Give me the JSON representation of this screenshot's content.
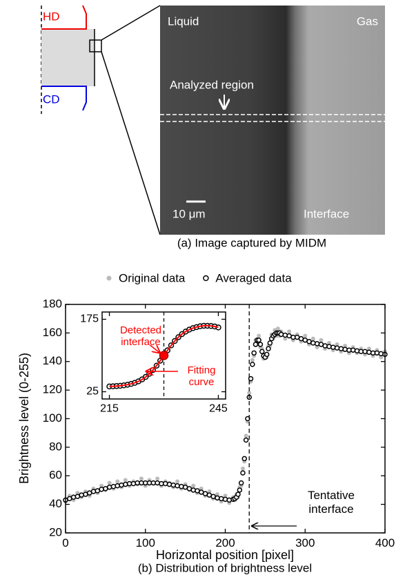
{
  "image_panel": {
    "labels": {
      "hd": "HD",
      "cd": "CD",
      "liquid": "Liquid",
      "gas": "Gas",
      "analyzed_region": "Analyzed region",
      "scale_bar": "10 μm",
      "interface": "Interface"
    },
    "caption": "(a) Image captured by MIDM"
  },
  "chart_data": [
    {
      "type": "scatter",
      "caption": "(b) Distribution of brightness level",
      "x_label": "Horizontal position [pixel]",
      "y_label": "Brightness level (0-255)",
      "xlim": [
        0,
        400
      ],
      "xticks": [
        0,
        100,
        200,
        300,
        400
      ],
      "ylim": [
        20,
        180
      ],
      "yticks": [
        20,
        40,
        60,
        80,
        100,
        120,
        140,
        160,
        180
      ],
      "legend": "top",
      "interface_x": 230,
      "annotation": "Tentative interface",
      "x": [
        0,
        5,
        10,
        15,
        20,
        25,
        30,
        35,
        40,
        45,
        50,
        55,
        60,
        65,
        70,
        75,
        80,
        85,
        90,
        95,
        100,
        105,
        110,
        115,
        120,
        125,
        130,
        135,
        140,
        145,
        150,
        155,
        160,
        165,
        170,
        175,
        180,
        185,
        190,
        195,
        200,
        205,
        210,
        212,
        214,
        216,
        218,
        220,
        222,
        224,
        226,
        228,
        230,
        232,
        234,
        236,
        238,
        240,
        242,
        244,
        246,
        248,
        250,
        252,
        254,
        256,
        258,
        260,
        262,
        264,
        266,
        268,
        270,
        275,
        280,
        285,
        290,
        295,
        300,
        305,
        310,
        315,
        320,
        325,
        330,
        335,
        340,
        345,
        350,
        355,
        360,
        365,
        370,
        375,
        380,
        385,
        390,
        395,
        400
      ],
      "series": [
        {
          "name": "Original data",
          "color": "#bbbbbb",
          "marker": "filled",
          "values": [
            42,
            46,
            43,
            48,
            45,
            49,
            46,
            51,
            48,
            53,
            50,
            55,
            51,
            56,
            52,
            57,
            53,
            56,
            54,
            58,
            53,
            57,
            55,
            58,
            53,
            56,
            55,
            52,
            56,
            51,
            54,
            50,
            53,
            48,
            51,
            46,
            49,
            44,
            47,
            42,
            46,
            41,
            45,
            43,
            47,
            45,
            52,
            53,
            65,
            70,
            88,
            98,
            118,
            126,
            141,
            144,
            155,
            153,
            158,
            150,
            149,
            142,
            145,
            143,
            151,
            151,
            159,
            156,
            162,
            158,
            163,
            158,
            161,
            156,
            161,
            155,
            159,
            154,
            158,
            152,
            156,
            150,
            155,
            149,
            153,
            148,
            152,
            147,
            151,
            146,
            150,
            146,
            149,
            145,
            149,
            144,
            148,
            143,
            147
          ]
        },
        {
          "name": "Averaged data",
          "color": "#000000",
          "marker": "open",
          "values": [
            43,
            44,
            45,
            45.5,
            46.5,
            47,
            48,
            49,
            49.5,
            50.5,
            51,
            52,
            52.5,
            53,
            53.5,
            54,
            54.5,
            54.5,
            55,
            55,
            55,
            55,
            55,
            55,
            54.5,
            54.5,
            54,
            53.5,
            53,
            52.5,
            52,
            51,
            50,
            49.5,
            48.5,
            47.5,
            46.5,
            45.5,
            44.5,
            44,
            43.5,
            43,
            43.5,
            44,
            45,
            47,
            50,
            55,
            62,
            72,
            85,
            100,
            115,
            128,
            138,
            146,
            152,
            155,
            155,
            152,
            147,
            144,
            143,
            145,
            149,
            153,
            156,
            158,
            159,
            160,
            160,
            160,
            159,
            158.5,
            158,
            157,
            157,
            156,
            155,
            154,
            153,
            152.5,
            152,
            151,
            150.5,
            150,
            149.5,
            149,
            148.5,
            148,
            148,
            147.5,
            147,
            147,
            146.5,
            146,
            146,
            145.5,
            145
          ]
        }
      ]
    },
    {
      "type": "scatter",
      "inset": true,
      "xlim": [
        213,
        247
      ],
      "xticks": [
        215,
        245
      ],
      "ylim": [
        10,
        190
      ],
      "yticks": [
        25,
        175
      ],
      "detected": {
        "x": 230,
        "y": 100
      },
      "annotations": [
        "Detected interface",
        "Fitting curve"
      ],
      "x": [
        215,
        216,
        217,
        218,
        219,
        220,
        221,
        222,
        223,
        224,
        225,
        226,
        227,
        228,
        229,
        230,
        231,
        232,
        233,
        234,
        235,
        236,
        237,
        238,
        239,
        240,
        241,
        242,
        243,
        244,
        245
      ],
      "series": [
        {
          "color": "#000000",
          "marker": "open",
          "values": [
            35.9,
            36.2,
            36.7,
            37.3,
            38.2,
            39.5,
            41.2,
            43.4,
            46.5,
            50.5,
            55.7,
            62.1,
            70,
            79,
            89.2,
            100,
            110.7,
            120.9,
            130,
            137.9,
            144.3,
            149.5,
            153.5,
            156.6,
            158.8,
            160.5,
            161.5,
            161.5,
            161,
            160,
            158
          ]
        },
        {
          "color": "#ff0000",
          "marker": "line",
          "values": [
            36,
            36.3,
            36.8,
            37.4,
            38.3,
            39.6,
            41.3,
            43.5,
            46.4,
            50.4,
            55.6,
            62,
            70,
            79.1,
            89.3,
            100,
            110.6,
            120.8,
            130,
            138,
            144.4,
            149.6,
            153.6,
            156.7,
            158.9,
            160.6,
            161.6,
            161.8,
            161.2,
            160,
            158.2
          ]
        }
      ]
    }
  ]
}
